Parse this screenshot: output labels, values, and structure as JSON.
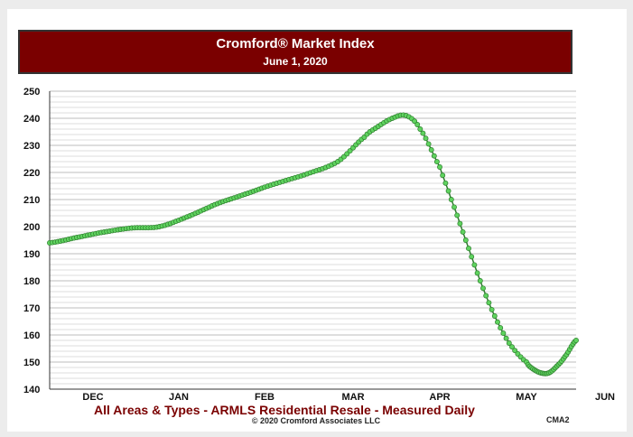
{
  "colors": {
    "title_bar": "#7a0000",
    "title_text": "#ffffff",
    "footer_text": "#7a0000",
    "series_fill": "#5fd35f",
    "series_stroke": "#2e7d2e",
    "grid": "#bdbdbd"
  },
  "header": {
    "title": "Cromford® Market Index",
    "subtitle": "June 1, 2020"
  },
  "footer": {
    "caption": "All Areas & Types - ARMLS Residential Resale - Measured Daily",
    "copyright": "© 2020 Cromford Associates LLC",
    "code": "CMA2"
  },
  "chart_data": {
    "type": "line",
    "title": "Cromford® Market Index",
    "subtitle": "June 1, 2020",
    "xlabel": "",
    "ylabel": "",
    "ylim": [
      140,
      250
    ],
    "yticks": [
      140,
      150,
      160,
      170,
      180,
      190,
      200,
      210,
      220,
      230,
      240,
      250
    ],
    "xticks": [
      "DEC",
      "JAN",
      "FEB",
      "MAR",
      "APR",
      "MAY",
      "JUN"
    ],
    "grid": true,
    "legend": "none",
    "series": [
      {
        "x": [
          "2019-11-15",
          "2019-11-25",
          "2019-12-05",
          "2019-12-15",
          "2019-12-25",
          "2020-01-05",
          "2020-01-15",
          "2020-01-25",
          "2020-02-05",
          "2020-02-15",
          "2020-02-25",
          "2020-03-05",
          "2020-03-10",
          "2020-03-15",
          "2020-03-20",
          "2020-03-25",
          "2020-04-01",
          "2020-04-05",
          "2020-04-10",
          "2020-04-15",
          "2020-04-20",
          "2020-04-25",
          "2020-05-01",
          "2020-05-05",
          "2020-05-10",
          "2020-05-15",
          "2020-05-20",
          "2020-05-25",
          "2020-06-01"
        ],
        "values": [
          194,
          196,
          198,
          199.5,
          200,
          204,
          208.5,
          212,
          216,
          219.5,
          224,
          233,
          237,
          240,
          241,
          236,
          222,
          210,
          195,
          180,
          167,
          157,
          150,
          147.5,
          146,
          146,
          148.5,
          152,
          158
        ]
      }
    ]
  }
}
